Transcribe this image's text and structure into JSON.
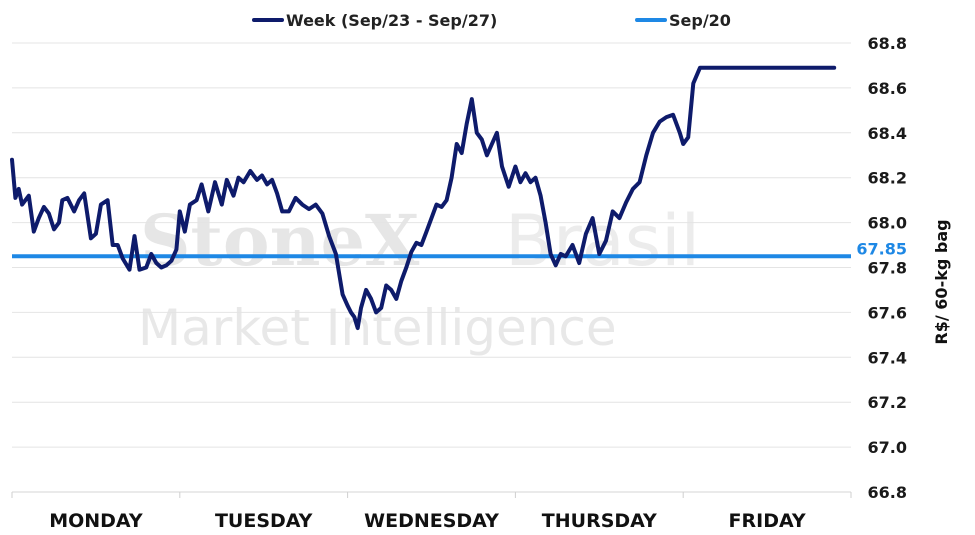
{
  "watermark": {
    "brand": "StoneX",
    "brand_suffix": "Brasil",
    "subtitle": "Market Intelligence"
  },
  "chart_data": {
    "type": "line",
    "title": "",
    "xlabel": "",
    "ylabel": "R$/ 60-kg bag",
    "categories": [
      "MONDAY",
      "TUESDAY",
      "WEDNESDAY",
      "THURSDAY",
      "FRIDAY"
    ],
    "ylim": [
      66.8,
      68.8
    ],
    "yticks": [
      "68.8",
      "68.6",
      "68.4",
      "68.2",
      "68.0",
      "67.8",
      "67.6",
      "67.4",
      "67.2",
      "67.0",
      "66.8"
    ],
    "grid": true,
    "legend_position": "top",
    "colors": {
      "week": "#0e1b6b",
      "reference": "#1e88e5"
    },
    "reference": {
      "name": "Sep/20",
      "value": 67.85,
      "label": "67.85"
    },
    "series": [
      {
        "name": "Week (Sep/23 - Sep/27)",
        "x": [
          0.0,
          0.02,
          0.04,
          0.06,
          0.08,
          0.1,
          0.13,
          0.16,
          0.19,
          0.22,
          0.25,
          0.28,
          0.3,
          0.33,
          0.37,
          0.4,
          0.43,
          0.47,
          0.5,
          0.53,
          0.57,
          0.6,
          0.63,
          0.66,
          0.7,
          0.73,
          0.76,
          0.8,
          0.83,
          0.86,
          0.89,
          0.92,
          0.95,
          0.98,
          1.0,
          1.03,
          1.06,
          1.1,
          1.13,
          1.17,
          1.21,
          1.25,
          1.28,
          1.32,
          1.35,
          1.38,
          1.42,
          1.46,
          1.49,
          1.52,
          1.55,
          1.58,
          1.61,
          1.65,
          1.69,
          1.73,
          1.77,
          1.81,
          1.85,
          1.89,
          1.93,
          1.97,
          2.0,
          2.02,
          2.04,
          2.06,
          2.08,
          2.11,
          2.14,
          2.17,
          2.2,
          2.23,
          2.26,
          2.29,
          2.32,
          2.35,
          2.38,
          2.41,
          2.44,
          2.47,
          2.5,
          2.53,
          2.56,
          2.59,
          2.62,
          2.65,
          2.68,
          2.71,
          2.74,
          2.77,
          2.8,
          2.83,
          2.86,
          2.89,
          2.92,
          2.96,
          3.0,
          3.03,
          3.06,
          3.09,
          3.12,
          3.15,
          3.18,
          3.21,
          3.24,
          3.27,
          3.3,
          3.34,
          3.38,
          3.42,
          3.46,
          3.5,
          3.54,
          3.58,
          3.62,
          3.66,
          3.7,
          3.74,
          3.78,
          3.82,
          3.86,
          3.9,
          3.94,
          3.98,
          4.0,
          4.03,
          4.06,
          4.1,
          4.14,
          4.18,
          4.22,
          4.26,
          4.3,
          4.34,
          4.38,
          4.42,
          4.46,
          4.5,
          4.54,
          4.58,
          4.62,
          4.66,
          4.7,
          4.74,
          4.78,
          4.82,
          4.86,
          4.9,
          4.94,
          4.97,
          5.0
        ],
        "values": [
          68.28,
          68.11,
          68.15,
          68.08,
          68.1,
          68.12,
          67.96,
          68.02,
          68.07,
          68.04,
          67.97,
          68.0,
          68.1,
          68.11,
          68.05,
          68.1,
          68.13,
          67.93,
          67.95,
          68.08,
          68.1,
          67.9,
          67.9,
          67.84,
          67.79,
          67.94,
          67.79,
          67.8,
          67.86,
          67.82,
          67.8,
          67.81,
          67.83,
          67.88,
          68.05,
          67.96,
          68.08,
          68.1,
          68.17,
          68.05,
          68.18,
          68.08,
          68.19,
          68.12,
          68.2,
          68.18,
          68.23,
          68.19,
          68.21,
          68.17,
          68.19,
          68.13,
          68.05,
          68.05,
          68.11,
          68.08,
          68.06,
          68.08,
          68.04,
          67.94,
          67.86,
          67.68,
          67.63,
          67.6,
          67.58,
          67.53,
          67.62,
          67.7,
          67.66,
          67.6,
          67.62,
          67.72,
          67.7,
          67.66,
          67.74,
          67.8,
          67.87,
          67.91,
          67.9,
          67.96,
          68.02,
          68.08,
          68.07,
          68.1,
          68.2,
          68.35,
          68.31,
          68.44,
          68.55,
          68.4,
          68.37,
          68.3,
          68.35,
          68.4,
          68.25,
          68.16,
          68.25,
          68.18,
          68.22,
          68.18,
          68.2,
          68.12,
          68.0,
          67.86,
          67.81,
          67.86,
          67.85,
          67.9,
          67.82,
          67.95,
          68.02,
          67.86,
          67.92,
          68.05,
          68.02,
          68.09,
          68.15,
          68.18,
          68.3,
          68.4,
          68.45,
          68.47,
          68.48,
          68.4,
          68.35,
          68.38,
          68.62,
          68.69,
          68.69,
          68.69,
          68.69,
          68.69,
          68.69,
          68.69,
          68.69,
          68.69,
          68.69,
          68.69,
          68.69,
          68.69,
          68.69,
          68.69,
          68.69,
          68.69,
          68.69,
          68.69,
          68.69,
          68.69,
          68.69,
          68.69,
          68.69
        ]
      }
    ]
  }
}
